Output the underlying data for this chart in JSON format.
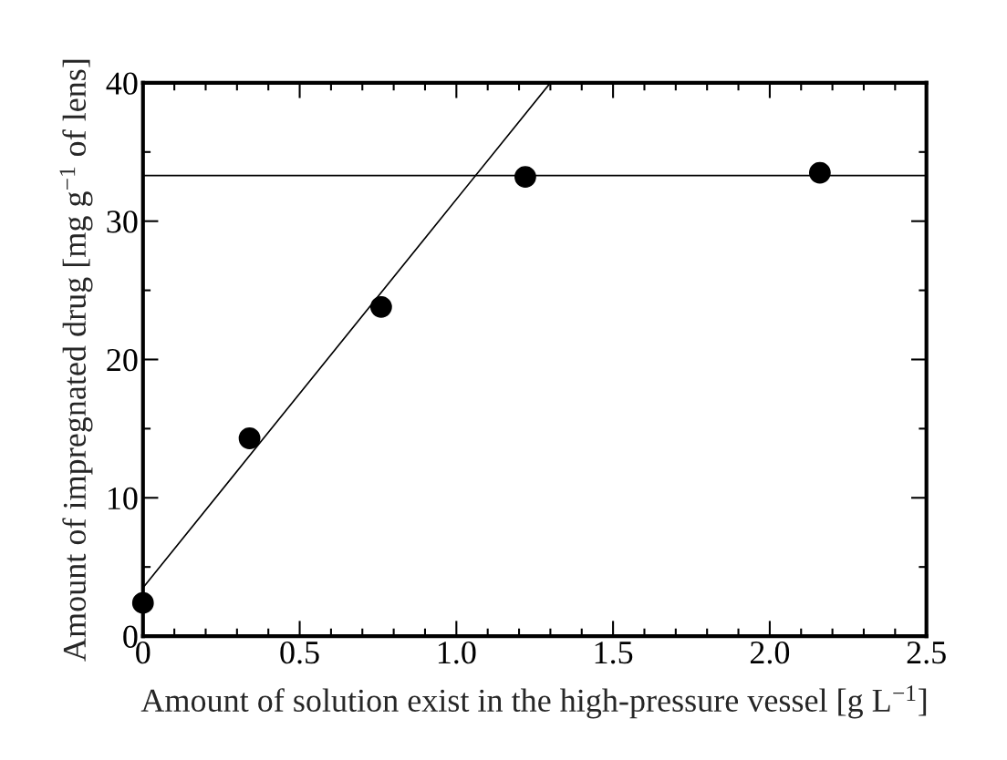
{
  "chart_data": {
    "type": "scatter",
    "xlabel": "Amount of solution exist in the high-pressure vessel [g L$^{−1}$]",
    "ylabel": "Amount of impregnated drug [mg g$^{−1}$ of lens]",
    "series": [
      {
        "color": "#000000",
        "marker": "circle",
        "x": [
          0,
          0.34,
          0.76,
          1.22,
          2.16
        ],
        "values": [
          2.4,
          14.3,
          23.8,
          33.2,
          33.5
        ]
      },
      {
        "type": "line",
        "color": "#000000",
        "marker": "none",
        "line_style": "solid",
        "x": [
          0,
          1.3
        ],
        "values": [
          3.5,
          40
        ]
      }
    ],
    "ref_lines": [
      {
        "axis": "y",
        "value": 33.3,
        "color": "#000000",
        "line_style": "solid"
      }
    ],
    "xlim": [
      0,
      2.5
    ],
    "xticks": [
      0,
      {
        "value": 0.5,
        "label": "0.5"
      },
      {
        "value": 1,
        "label": "1.0"
      },
      {
        "value": 1.5,
        "label": "1.5"
      },
      {
        "value": 2,
        "label": "2.0"
      },
      {
        "value": 2.5,
        "label": "2.5"
      }
    ],
    "ylim": [
      0,
      40
    ],
    "yticks": [
      0,
      10,
      20,
      30,
      40
    ],
    "grid": false,
    "legend": false
  }
}
